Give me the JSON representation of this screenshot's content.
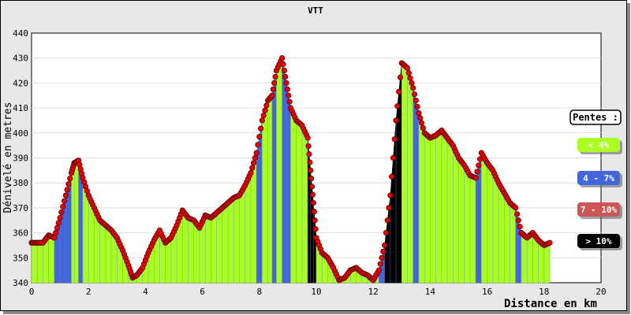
{
  "chart_data": {
    "type": "area",
    "title": "VTT",
    "xlabel": "Distance en km",
    "ylabel": "Dénivelé en metres",
    "xlim": [
      0,
      20
    ],
    "ylim": [
      340,
      440
    ],
    "x_ticks": [
      "0",
      "2",
      "4",
      "6",
      "8",
      "10",
      "12",
      "14",
      "16",
      "18",
      "20"
    ],
    "y_ticks": [
      "340",
      "350",
      "360",
      "370",
      "380",
      "390",
      "400",
      "410",
      "420",
      "430",
      "440"
    ],
    "grid": "horizontal",
    "legend_position": "right",
    "legend": {
      "title": "Pentes :",
      "items": [
        {
          "label": "< 4%",
          "color": "#aaff22",
          "text_color": "#ffffff"
        },
        {
          "label": "4 - 7%",
          "color": "#4466dd",
          "text_color": "#ffffff"
        },
        {
          "label": "7 - 10%",
          "color": "#cc5555",
          "text_color": "#ffffff"
        },
        {
          "label": "> 10%",
          "color": "#000000",
          "text_color": "#ffffff"
        }
      ]
    },
    "colors": {
      "marker": "#ee0000",
      "band_lt4": "#aaff22",
      "band_4_7": "#4466dd",
      "band_7_10": "#cc5555",
      "band_gt10": "#000000"
    },
    "profile": [
      [
        0,
        356
      ],
      [
        0.2,
        356
      ],
      [
        0.4,
        356
      ],
      [
        0.6,
        359
      ],
      [
        0.8,
        358
      ],
      [
        1.0,
        366
      ],
      [
        1.2,
        375
      ],
      [
        1.4,
        384
      ],
      [
        1.5,
        388
      ],
      [
        1.65,
        389
      ],
      [
        1.8,
        382
      ],
      [
        2.0,
        375
      ],
      [
        2.2,
        370
      ],
      [
        2.4,
        365
      ],
      [
        2.6,
        363
      ],
      [
        2.8,
        361
      ],
      [
        3.0,
        358
      ],
      [
        3.2,
        353
      ],
      [
        3.4,
        347
      ],
      [
        3.55,
        342
      ],
      [
        3.7,
        343
      ],
      [
        3.9,
        346
      ],
      [
        4.1,
        352
      ],
      [
        4.3,
        357
      ],
      [
        4.5,
        361
      ],
      [
        4.7,
        356
      ],
      [
        4.9,
        358
      ],
      [
        5.1,
        363
      ],
      [
        5.3,
        369
      ],
      [
        5.5,
        366
      ],
      [
        5.7,
        365
      ],
      [
        5.9,
        362
      ],
      [
        6.1,
        367
      ],
      [
        6.3,
        366
      ],
      [
        6.5,
        368
      ],
      [
        6.7,
        370
      ],
      [
        6.9,
        372
      ],
      [
        7.1,
        374
      ],
      [
        7.3,
        375
      ],
      [
        7.5,
        379
      ],
      [
        7.7,
        384
      ],
      [
        7.9,
        392
      ],
      [
        8.1,
        405
      ],
      [
        8.3,
        413
      ],
      [
        8.45,
        415
      ],
      [
        8.6,
        425
      ],
      [
        8.8,
        430
      ],
      [
        8.95,
        420
      ],
      [
        9.1,
        410
      ],
      [
        9.3,
        405
      ],
      [
        9.5,
        403
      ],
      [
        9.7,
        398
      ],
      [
        9.8,
        385
      ],
      [
        9.9,
        372
      ],
      [
        10.0,
        358
      ],
      [
        10.2,
        352
      ],
      [
        10.4,
        350
      ],
      [
        10.6,
        346
      ],
      [
        10.8,
        341
      ],
      [
        11.0,
        342
      ],
      [
        11.2,
        345
      ],
      [
        11.4,
        346
      ],
      [
        11.6,
        344
      ],
      [
        11.8,
        343
      ],
      [
        12.0,
        341
      ],
      [
        12.2,
        345
      ],
      [
        12.4,
        355
      ],
      [
        12.6,
        375
      ],
      [
        12.8,
        405
      ],
      [
        13.0,
        428
      ],
      [
        13.2,
        426
      ],
      [
        13.4,
        418
      ],
      [
        13.6,
        408
      ],
      [
        13.8,
        400
      ],
      [
        14.0,
        398
      ],
      [
        14.2,
        399
      ],
      [
        14.4,
        401
      ],
      [
        14.6,
        398
      ],
      [
        14.8,
        395
      ],
      [
        15.0,
        390
      ],
      [
        15.2,
        387
      ],
      [
        15.4,
        383
      ],
      [
        15.6,
        382
      ],
      [
        15.8,
        392
      ],
      [
        16.0,
        388
      ],
      [
        16.2,
        385
      ],
      [
        16.4,
        380
      ],
      [
        16.6,
        376
      ],
      [
        16.8,
        372
      ],
      [
        17.0,
        370
      ],
      [
        17.2,
        360
      ],
      [
        17.4,
        358
      ],
      [
        17.6,
        360
      ],
      [
        17.8,
        357
      ],
      [
        18.0,
        355
      ],
      [
        18.2,
        356
      ]
    ]
  }
}
